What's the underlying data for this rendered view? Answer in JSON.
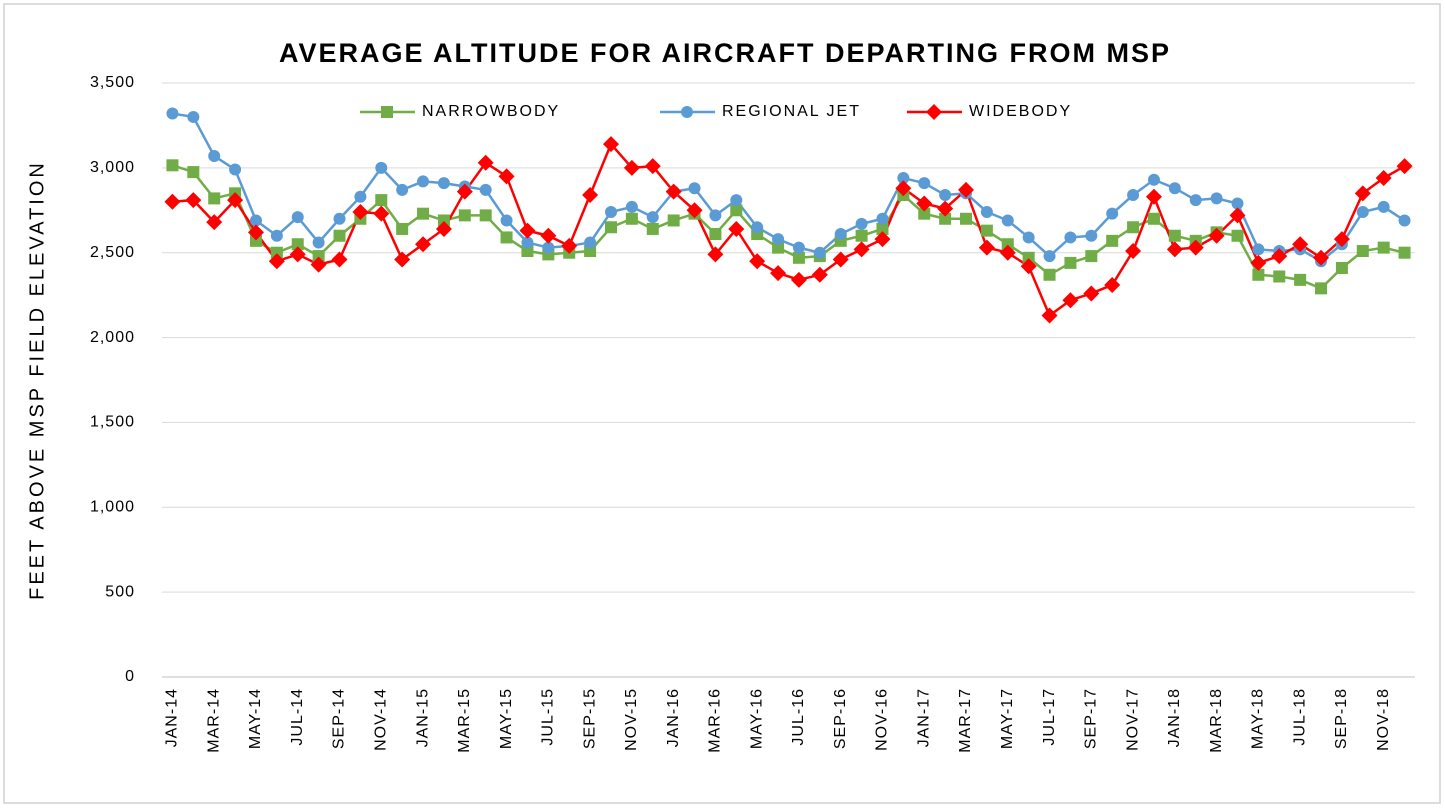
{
  "chart_data": {
    "type": "line",
    "title": "AVERAGE ALTITUDE FOR AIRCRAFT DEPARTING FROM MSP",
    "y_label": "FEET ABOVE MSP FIELD ELEVATION",
    "categories": [
      "JAN-14",
      null,
      "MAR-14",
      null,
      "MAY-14",
      null,
      "JUL-14",
      null,
      "SEP-14",
      null,
      "NOV-14",
      null,
      "JAN-15",
      null,
      "MAR-15",
      null,
      "MAY-15",
      null,
      "JUL-15",
      null,
      "SEP-15",
      null,
      "NOV-15",
      null,
      "JAN-16",
      null,
      "MAR-16",
      null,
      "MAY-16",
      null,
      "JUL-16",
      null,
      "SEP-16",
      null,
      "NOV-16",
      null,
      "JAN-17",
      null,
      "MAR-17",
      null,
      "MAY-17",
      null,
      "JUL-17",
      null,
      "SEP-17",
      null,
      "NOV-17",
      null,
      "JAN-18",
      null,
      "MAR-18",
      null,
      "MAY-18",
      null,
      "JUL-18",
      null,
      "SEP-18",
      null,
      "NOV-18",
      null
    ],
    "series": [
      {
        "name": "NARROWBODY",
        "color": "#70ad47",
        "marker": "square",
        "values": [
          3015,
          2975,
          2820,
          2850,
          2570,
          2500,
          2550,
          2480,
          2600,
          2700,
          2810,
          2640,
          2730,
          2690,
          2720,
          2720,
          2590,
          2510,
          2490,
          2500,
          2510,
          2650,
          2700,
          2640,
          2690,
          2730,
          2610,
          2750,
          2610,
          2530,
          2470,
          2480,
          2570,
          2600,
          2640,
          2840,
          2730,
          2700,
          2700,
          2630,
          2550,
          2470,
          2370,
          2440,
          2480,
          2570,
          2650,
          2700,
          2600,
          2570,
          2620,
          2600,
          2370,
          2360,
          2340,
          2290,
          2410,
          2510,
          2530,
          2500
        ]
      },
      {
        "name": "REGIONAL JET",
        "color": "#5b9bd5",
        "marker": "circle",
        "values": [
          3320,
          3300,
          3070,
          2990,
          2690,
          2600,
          2710,
          2560,
          2700,
          2830,
          3000,
          2870,
          2920,
          2910,
          2890,
          2870,
          2690,
          2560,
          2530,
          2540,
          2560,
          2740,
          2770,
          2710,
          2860,
          2880,
          2720,
          2810,
          2650,
          2580,
          2530,
          2500,
          2610,
          2670,
          2700,
          2940,
          2910,
          2840,
          2850,
          2740,
          2690,
          2590,
          2480,
          2590,
          2600,
          2730,
          2840,
          2930,
          2880,
          2810,
          2820,
          2790,
          2520,
          2510,
          2520,
          2450,
          2550,
          2740,
          2770,
          2690
        ]
      },
      {
        "name": "WIDEBODY",
        "color": "#ff0000",
        "marker": "diamond",
        "values": [
          2800,
          2810,
          2680,
          2810,
          2620,
          2450,
          2490,
          2430,
          2460,
          2740,
          2730,
          2460,
          2550,
          2640,
          2860,
          3030,
          2950,
          2630,
          2600,
          2540,
          2840,
          3140,
          3000,
          3010,
          2860,
          2750,
          2490,
          2640,
          2450,
          2380,
          2340,
          2370,
          2460,
          2520,
          2580,
          2880,
          2790,
          2760,
          2870,
          2530,
          2500,
          2420,
          2130,
          2220,
          2260,
          2310,
          2510,
          2830,
          2520,
          2530,
          2600,
          2720,
          2440,
          2480,
          2550,
          2470,
          2580,
          2850,
          2940,
          3010
        ]
      }
    ],
    "ylim": [
      0,
      3500
    ],
    "yticks": [
      0,
      500,
      {
        "value": 1000,
        "label": "1,000"
      },
      {
        "value": 1500,
        "label": "1,500"
      },
      {
        "value": 2000,
        "label": "2,000"
      },
      {
        "value": 2500,
        "label": "2,500"
      },
      {
        "value": 3000,
        "label": "3,000"
      },
      {
        "value": 3500,
        "label": "3,500"
      }
    ],
    "grid": true,
    "legend": "top"
  }
}
